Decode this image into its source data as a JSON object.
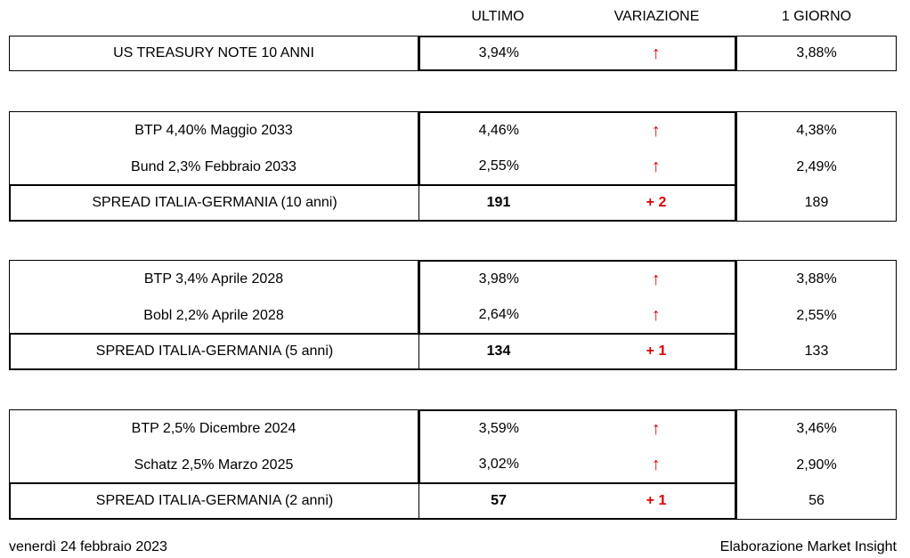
{
  "header": {
    "ultimo": "ULTIMO",
    "variazione": "VARIAZIONE",
    "giorno": "1 GIORNO"
  },
  "colors": {
    "accent_red": "#dd0000",
    "border": "#000000",
    "background": "#ffffff"
  },
  "blocks": [
    {
      "rows": [
        {
          "label": "US TREASURY NOTE 10 ANNI",
          "ultimo": "3,94%",
          "variazione": "↑",
          "giorno": "3,88%"
        }
      ]
    },
    {
      "rows": [
        {
          "label": "BTP 4,40% Maggio 2033",
          "ultimo": "4,46%",
          "variazione": "↑",
          "giorno": "4,38%"
        },
        {
          "label": "Bund 2,3% Febbraio 2033",
          "ultimo": "2,55%",
          "variazione": "↑",
          "giorno": "2,49%"
        }
      ],
      "spread": {
        "label": "SPREAD ITALIA-GERMANIA (10 anni)",
        "ultimo": "191",
        "variazione": "+ 2",
        "giorno": "189"
      }
    },
    {
      "rows": [
        {
          "label": "BTP 3,4% Aprile 2028",
          "ultimo": "3,98%",
          "variazione": "↑",
          "giorno": "3,88%"
        },
        {
          "label": "Bobl 2,2% Aprile 2028",
          "ultimo": "2,64%",
          "variazione": "↑",
          "giorno": "2,55%"
        }
      ],
      "spread": {
        "label": "SPREAD ITALIA-GERMANIA (5 anni)",
        "ultimo": "134",
        "variazione": "+ 1",
        "giorno": "133"
      }
    },
    {
      "rows": [
        {
          "label": "BTP 2,5% Dicembre 2024",
          "ultimo": "3,59%",
          "variazione": "↑",
          "giorno": "3,46%"
        },
        {
          "label": "Schatz 2,5% Marzo 2025",
          "ultimo": "3,02%",
          "variazione": "↑",
          "giorno": "2,90%"
        }
      ],
      "spread": {
        "label": "SPREAD ITALIA-GERMANIA (2 anni)",
        "ultimo": "57",
        "variazione": "+ 1",
        "giorno": "56"
      }
    }
  ],
  "footer": {
    "date": "venerdì 24 febbraio 2023",
    "credit": "Elaborazione Market Insight"
  },
  "chart_data": {
    "type": "table",
    "columns": [
      "",
      "ULTIMO",
      "VARIAZIONE",
      "1 GIORNO"
    ],
    "rows": [
      [
        "US TREASURY NOTE 10 ANNI",
        "3,94%",
        "up",
        "3,88%"
      ],
      [
        "BTP 4,40% Maggio 2033",
        "4,46%",
        "up",
        "4,38%"
      ],
      [
        "Bund 2,3% Febbraio 2033",
        "2,55%",
        "up",
        "2,49%"
      ],
      [
        "SPREAD ITALIA-GERMANIA (10 anni)",
        "191",
        "+2",
        "189"
      ],
      [
        "BTP 3,4% Aprile 2028",
        "3,98%",
        "up",
        "3,88%"
      ],
      [
        "Bobl 2,2% Aprile 2028",
        "2,64%",
        "up",
        "2,55%"
      ],
      [
        "SPREAD ITALIA-GERMANIA (5 anni)",
        "134",
        "+1",
        "133"
      ],
      [
        "BTP 2,5% Dicembre 2024",
        "3,59%",
        "up",
        "3,46%"
      ],
      [
        "Schatz 2,5% Marzo 2025",
        "3,02%",
        "up",
        "2,90%"
      ],
      [
        "SPREAD ITALIA-GERMANIA (2 anni)",
        "57",
        "+1",
        "56"
      ]
    ],
    "notes": "Red up arrows indicate yield increased vs previous day; spread rows show basis points Italy-Germany and daily change in red."
  }
}
